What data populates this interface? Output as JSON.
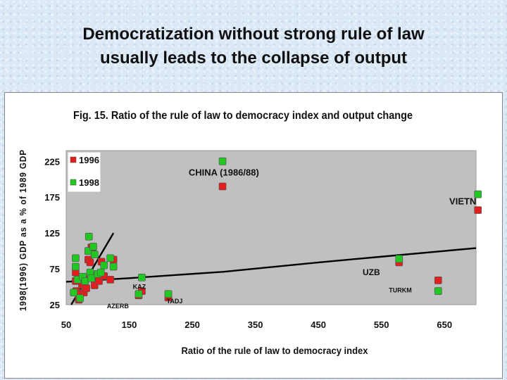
{
  "slide": {
    "title_line1": "Democratization without strong rule of law",
    "title_line2": "usually leads to the collapse of output"
  },
  "colors": {
    "series_1996": "#e41e1e",
    "series_1998": "#22c822",
    "plot_bg": "#c0c0c0",
    "trend": "#000000"
  },
  "chart_data": {
    "type": "scatter",
    "title": "Fig. 15. Ratio of the rule of law to democracy index and output change",
    "xlabel": "Ratio of the rule of law to democracy index",
    "ylabel": "1998(1996) GDP as a % of 1989 GDP",
    "xlim": [
      50,
      700
    ],
    "ylim": [
      25,
      240
    ],
    "xticks": [
      50,
      150,
      250,
      350,
      450,
      550,
      650
    ],
    "yticks": [
      25,
      75,
      125,
      175,
      225
    ],
    "grid": false,
    "legend_position": "top-left",
    "series": [
      {
        "name": "1996",
        "color": "#e41e1e",
        "points": [
          [
            65,
            70
          ],
          [
            65,
            58
          ],
          [
            66,
            44
          ],
          [
            70,
            32
          ],
          [
            72,
            40
          ],
          [
            75,
            53
          ],
          [
            78,
            42
          ],
          [
            80,
            60
          ],
          [
            82,
            48
          ],
          [
            85,
            88
          ],
          [
            88,
            84
          ],
          [
            90,
            105
          ],
          [
            92,
            100
          ],
          [
            95,
            65
          ],
          [
            95,
            52
          ],
          [
            102,
            58
          ],
          [
            106,
            85
          ],
          [
            110,
            65
          ],
          [
            120,
            60
          ],
          [
            125,
            88
          ],
          [
            165,
            38
          ],
          [
            170,
            44
          ],
          [
            212,
            35
          ],
          [
            298,
            190
          ],
          [
            578,
            84
          ],
          [
            640,
            59
          ],
          [
            703,
            157
          ]
        ]
      },
      {
        "name": "1998",
        "color": "#22c822",
        "points": [
          [
            62,
            42
          ],
          [
            65,
            90
          ],
          [
            65,
            78
          ],
          [
            68,
            60
          ],
          [
            72,
            34
          ],
          [
            76,
            64
          ],
          [
            80,
            58
          ],
          [
            85,
            100
          ],
          [
            86,
            120
          ],
          [
            88,
            70
          ],
          [
            90,
            62
          ],
          [
            93,
            106
          ],
          [
            95,
            95
          ],
          [
            100,
            68
          ],
          [
            105,
            70
          ],
          [
            110,
            80
          ],
          [
            120,
            90
          ],
          [
            125,
            78
          ],
          [
            165,
            40
          ],
          [
            170,
            63
          ],
          [
            212,
            40
          ],
          [
            298,
            225
          ],
          [
            578,
            89
          ],
          [
            640,
            44
          ],
          [
            703,
            179
          ]
        ]
      }
    ],
    "trend_lines": [
      {
        "points": [
          [
            50,
            57
          ],
          [
            150,
            62
          ],
          [
            300,
            71
          ],
          [
            450,
            84
          ],
          [
            550,
            92
          ],
          [
            700,
            104
          ]
        ]
      },
      {
        "points": [
          [
            58,
            25
          ],
          [
            125,
            125
          ]
        ]
      }
    ],
    "annotations": [
      {
        "text": "CHINA (1986/88)",
        "x": 300,
        "y": 205,
        "size": 13
      },
      {
        "text": "VIETN",
        "x": 679,
        "y": 165,
        "size": 13
      },
      {
        "text": "UZB",
        "x": 534,
        "y": 66,
        "size": 12
      },
      {
        "text": "TURKM",
        "x": 580,
        "y": 42,
        "size": 9
      },
      {
        "text": "KAZ",
        "x": 166,
        "y": 47,
        "size": 9
      },
      {
        "text": "TADJ",
        "x": 222,
        "y": 27,
        "size": 9
      },
      {
        "text": "AZERB",
        "x": 132,
        "y": 20,
        "size": 9
      }
    ]
  }
}
